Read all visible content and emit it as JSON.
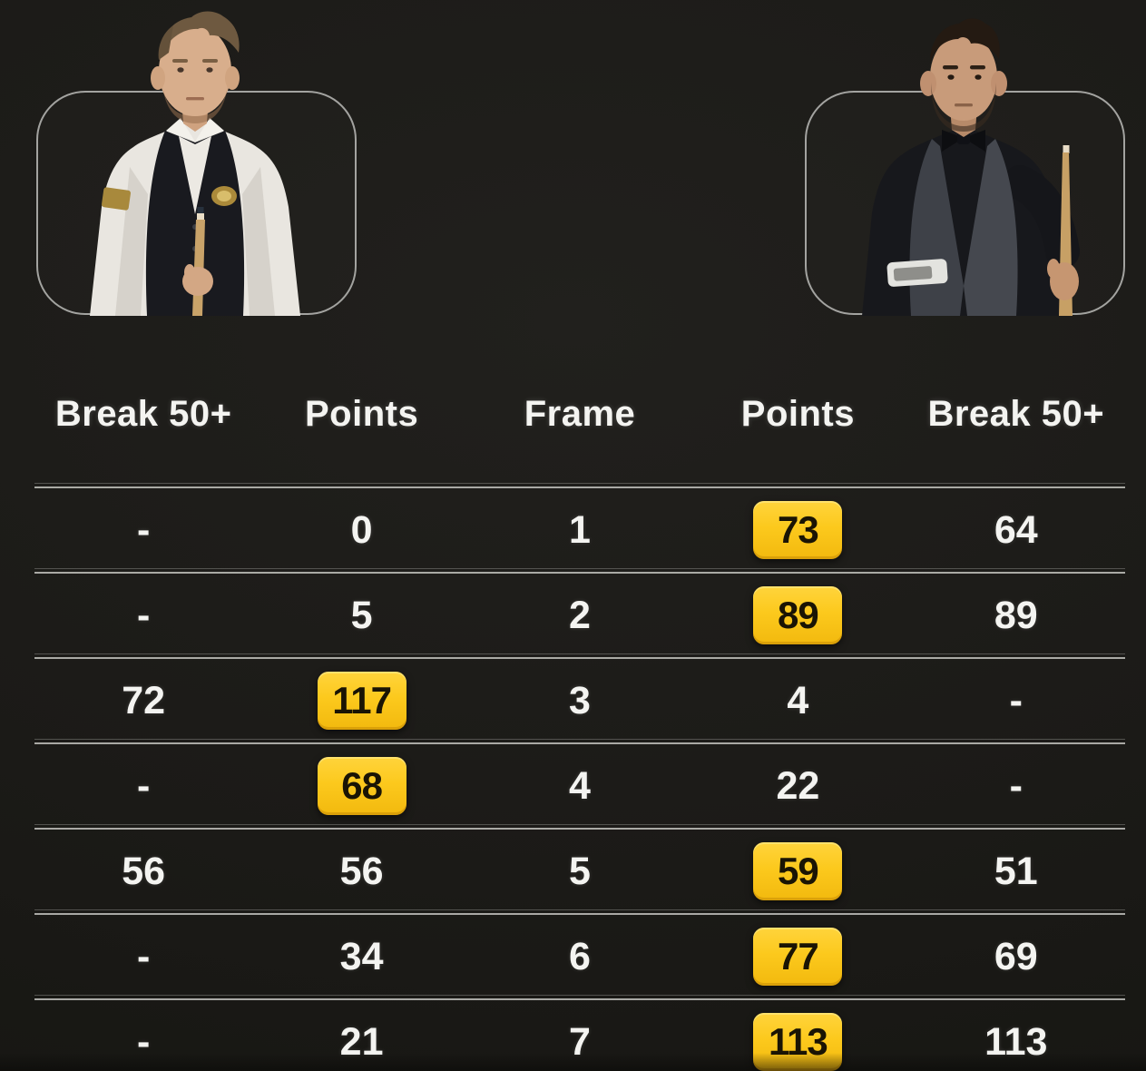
{
  "colors": {
    "background": "#1b1a17",
    "text": "#f4f4f1",
    "separator": "#bdbdb9",
    "highlight_bg": "#fcc91d",
    "highlight_text": "#1a1404",
    "frame_border": "#a3a3a0"
  },
  "icons": {
    "left_player_photo": "snooker-player-white-shirt-black-waistcoat-holding-cue",
    "right_player_photo": "snooker-player-dark-shirt-grey-waistcoat-bow-tie-holding-cue"
  },
  "table": {
    "headers": [
      "Break 50+",
      "Points",
      "Frame",
      "Points",
      "Break 50+"
    ],
    "rows": [
      {
        "cells": [
          {
            "v": "-"
          },
          {
            "v": "0"
          },
          {
            "v": "1"
          },
          {
            "v": "73",
            "hl": true
          },
          {
            "v": "64"
          }
        ]
      },
      {
        "cells": [
          {
            "v": "-"
          },
          {
            "v": "5"
          },
          {
            "v": "2"
          },
          {
            "v": "89",
            "hl": true
          },
          {
            "v": "89"
          }
        ]
      },
      {
        "cells": [
          {
            "v": "72"
          },
          {
            "v": "117",
            "hl": true
          },
          {
            "v": "3"
          },
          {
            "v": "4"
          },
          {
            "v": "-"
          }
        ]
      },
      {
        "cells": [
          {
            "v": "-"
          },
          {
            "v": "68",
            "hl": true
          },
          {
            "v": "4"
          },
          {
            "v": "22"
          },
          {
            "v": "-"
          }
        ]
      },
      {
        "cells": [
          {
            "v": "56"
          },
          {
            "v": "56"
          },
          {
            "v": "5"
          },
          {
            "v": "59",
            "hl": true
          },
          {
            "v": "51"
          }
        ]
      },
      {
        "cells": [
          {
            "v": "-"
          },
          {
            "v": "34"
          },
          {
            "v": "6"
          },
          {
            "v": "77",
            "hl": true
          },
          {
            "v": "69"
          }
        ]
      },
      {
        "cells": [
          {
            "v": "-"
          },
          {
            "v": "21"
          },
          {
            "v": "7"
          },
          {
            "v": "113",
            "hl": true
          },
          {
            "v": "113"
          }
        ]
      }
    ]
  }
}
